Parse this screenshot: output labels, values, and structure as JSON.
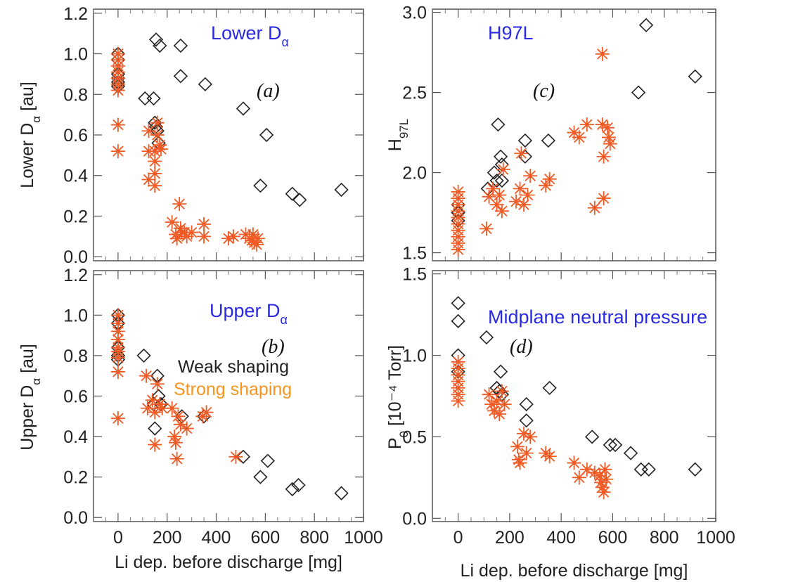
{
  "colors": {
    "weak": "#222222",
    "strong": "#f05a24",
    "annotation": "#2a2ae0",
    "legend_strong": "#f7941d"
  },
  "legend": {
    "weak": "Weak shaping",
    "strong": "Strong shaping"
  },
  "chart_data": [
    {
      "id": "a",
      "type": "scatter",
      "panel_letter": "(a)",
      "annotation": "Lower D",
      "annotation_sub": "α",
      "ylabel": "Lower D",
      "ylabel_sub": "α",
      "ylabel_suffix": " [au]",
      "xlabel": "",
      "xlim": [
        -100,
        1000
      ],
      "ylim": [
        -0.02,
        1.22
      ],
      "xticks": [
        0,
        200,
        400,
        600,
        800,
        1000
      ],
      "yticks": [
        0.0,
        0.2,
        0.4,
        0.6,
        0.8,
        1.0,
        1.2
      ],
      "ytick_labels": [
        "0.0",
        "0.2",
        "0.4",
        "0.6",
        "0.8",
        "1.0",
        "1.2"
      ],
      "show_xtick_labels": false,
      "series": [
        {
          "name": "Weak shaping",
          "marker": "diamond",
          "points": [
            [
              0,
              1.0
            ],
            [
              0,
              0.97
            ],
            [
              0,
              0.9
            ],
            [
              0,
              0.88
            ],
            [
              0,
              0.86
            ],
            [
              0,
              0.84
            ],
            [
              110,
              0.78
            ],
            [
              145,
              0.78
            ],
            [
              150,
              0.66
            ],
            [
              155,
              0.64
            ],
            [
              160,
              0.62
            ],
            [
              165,
              0.56
            ],
            [
              155,
              1.07
            ],
            [
              170,
              1.04
            ],
            [
              255,
              1.04
            ],
            [
              255,
              0.89
            ],
            [
              355,
              0.85
            ],
            [
              510,
              0.73
            ],
            [
              605,
              0.6
            ],
            [
              580,
              0.35
            ],
            [
              710,
              0.31
            ],
            [
              740,
              0.28
            ],
            [
              910,
              0.33
            ]
          ]
        },
        {
          "name": "Strong shaping",
          "marker": "asterisk",
          "points": [
            [
              0,
              1.0
            ],
            [
              0,
              0.97
            ],
            [
              0,
              0.94
            ],
            [
              0,
              0.91
            ],
            [
              0,
              0.88
            ],
            [
              0,
              0.85
            ],
            [
              0,
              0.82
            ],
            [
              0,
              0.65
            ],
            [
              0,
              0.52
            ],
            [
              125,
              0.62
            ],
            [
              125,
              0.52
            ],
            [
              125,
              0.38
            ],
            [
              150,
              0.52
            ],
            [
              150,
              0.47
            ],
            [
              150,
              0.41
            ],
            [
              150,
              0.35
            ],
            [
              160,
              0.66
            ],
            [
              160,
              0.6
            ],
            [
              170,
              0.55
            ],
            [
              175,
              0.53
            ],
            [
              220,
              0.17
            ],
            [
              235,
              0.11
            ],
            [
              240,
              0.09
            ],
            [
              250,
              0.26
            ],
            [
              255,
              0.14
            ],
            [
              260,
              0.12
            ],
            [
              270,
              0.12
            ],
            [
              280,
              0.1
            ],
            [
              300,
              0.12
            ],
            [
              350,
              0.16
            ],
            [
              350,
              0.1
            ],
            [
              450,
              0.09
            ],
            [
              470,
              0.1
            ],
            [
              520,
              0.11
            ],
            [
              535,
              0.09
            ],
            [
              545,
              0.08
            ],
            [
              550,
              0.11
            ],
            [
              555,
              0.07
            ],
            [
              565,
              0.06
            ],
            [
              570,
              0.09
            ]
          ]
        }
      ]
    },
    {
      "id": "b",
      "type": "scatter",
      "panel_letter": "(b)",
      "annotation": "Upper D",
      "annotation_sub": "α",
      "ylabel": "Upper D",
      "ylabel_sub": "α",
      "ylabel_suffix": " [au]",
      "xlabel": "Li dep. before discharge [mg]",
      "xlim": [
        -100,
        1000
      ],
      "ylim": [
        -0.02,
        1.22
      ],
      "xticks": [
        0,
        200,
        400,
        600,
        800,
        1000
      ],
      "yticks": [
        0.0,
        0.2,
        0.4,
        0.6,
        0.8,
        1.0,
        1.2
      ],
      "ytick_labels": [
        "0.0",
        "0.2",
        "0.4",
        "0.6",
        "0.8",
        "1.0",
        "1.2"
      ],
      "show_xtick_labels": true,
      "series": [
        {
          "name": "Weak shaping",
          "marker": "diamond",
          "points": [
            [
              0,
              1.0
            ],
            [
              0,
              0.96
            ],
            [
              0,
              0.84
            ],
            [
              0,
              0.8
            ],
            [
              0,
              0.78
            ],
            [
              105,
              0.8
            ],
            [
              145,
              0.56
            ],
            [
              150,
              0.44
            ],
            [
              160,
              0.7
            ],
            [
              165,
              0.6
            ],
            [
              175,
              0.56
            ],
            [
              260,
              0.5
            ],
            [
              350,
              0.5
            ],
            [
              510,
              0.3
            ],
            [
              580,
              0.2
            ],
            [
              610,
              0.28
            ],
            [
              710,
              0.14
            ],
            [
              735,
              0.16
            ],
            [
              910,
              0.12
            ]
          ]
        },
        {
          "name": "Strong shaping",
          "marker": "asterisk",
          "points": [
            [
              0,
              1.0
            ],
            [
              0,
              0.96
            ],
            [
              0,
              0.92
            ],
            [
              0,
              0.88
            ],
            [
              0,
              0.84
            ],
            [
              0,
              0.82
            ],
            [
              0,
              0.79
            ],
            [
              0,
              0.72
            ],
            [
              0,
              0.49
            ],
            [
              115,
              0.7
            ],
            [
              120,
              0.54
            ],
            [
              140,
              0.58
            ],
            [
              150,
              0.52
            ],
            [
              150,
              0.36
            ],
            [
              160,
              0.66
            ],
            [
              170,
              0.56
            ],
            [
              180,
              0.54
            ],
            [
              220,
              0.54
            ],
            [
              230,
              0.4
            ],
            [
              235,
              0.37
            ],
            [
              240,
              0.29
            ],
            [
              245,
              0.5
            ],
            [
              255,
              0.46
            ],
            [
              280,
              0.44
            ],
            [
              345,
              0.5
            ],
            [
              360,
              0.52
            ],
            [
              480,
              0.3
            ]
          ]
        }
      ]
    },
    {
      "id": "c",
      "type": "scatter",
      "panel_letter": "(c)",
      "annotation": "H97L",
      "annotation_sub": "",
      "ylabel": "H",
      "ylabel_sub": "97L",
      "ylabel_suffix": "",
      "xlabel": "",
      "xlim": [
        -100,
        1000
      ],
      "ylim": [
        1.45,
        3.02
      ],
      "xticks": [
        0,
        200,
        400,
        600,
        800,
        1000
      ],
      "yticks": [
        1.5,
        2.0,
        2.5,
        3.0
      ],
      "ytick_labels": [
        "1.5",
        "2.0",
        "2.5",
        "3.0"
      ],
      "show_xtick_labels": false,
      "series": [
        {
          "name": "Weak shaping",
          "marker": "diamond",
          "points": [
            [
              0,
              1.8
            ],
            [
              0,
              1.75
            ],
            [
              0,
              1.7
            ],
            [
              115,
              1.9
            ],
            [
              140,
              2.0
            ],
            [
              150,
              1.95
            ],
            [
              155,
              2.3
            ],
            [
              165,
              2.1
            ],
            [
              170,
              2.05
            ],
            [
              170,
              1.95
            ],
            [
              260,
              2.2
            ],
            [
              260,
              2.1
            ],
            [
              350,
              2.2
            ],
            [
              700,
              2.5
            ],
            [
              730,
              2.92
            ],
            [
              920,
              2.6
            ]
          ]
        },
        {
          "name": "Strong shaping",
          "marker": "asterisk",
          "points": [
            [
              0,
              1.88
            ],
            [
              0,
              1.84
            ],
            [
              0,
              1.8
            ],
            [
              0,
              1.76
            ],
            [
              0,
              1.72
            ],
            [
              0,
              1.68
            ],
            [
              0,
              1.64
            ],
            [
              0,
              1.6
            ],
            [
              0,
              1.56
            ],
            [
              0,
              1.52
            ],
            [
              110,
              1.65
            ],
            [
              120,
              1.85
            ],
            [
              135,
              1.9
            ],
            [
              150,
              1.8
            ],
            [
              160,
              1.86
            ],
            [
              170,
              1.76
            ],
            [
              175,
              2.02
            ],
            [
              225,
              1.82
            ],
            [
              240,
              1.9
            ],
            [
              245,
              2.12
            ],
            [
              255,
              1.8
            ],
            [
              270,
              1.86
            ],
            [
              280,
              1.98
            ],
            [
              340,
              1.92
            ],
            [
              355,
              1.96
            ],
            [
              450,
              2.25
            ],
            [
              470,
              2.22
            ],
            [
              500,
              2.3
            ],
            [
              530,
              1.78
            ],
            [
              560,
              2.74
            ],
            [
              560,
              2.3
            ],
            [
              565,
              2.1
            ],
            [
              565,
              1.84
            ],
            [
              580,
              2.28
            ],
            [
              585,
              2.22
            ],
            [
              590,
              2.18
            ]
          ]
        }
      ]
    },
    {
      "id": "d",
      "type": "scatter",
      "panel_letter": "(d)",
      "annotation": "Midplane neutral pressure",
      "annotation_sub": "",
      "ylabel": "P",
      "ylabel_sub": "0",
      "ylabel_suffix": " [10⁻⁴ Torr]",
      "xlabel": "Li dep. before discharge [mg]",
      "xlim": [
        -100,
        1000
      ],
      "ylim": [
        -0.02,
        1.52
      ],
      "xticks": [
        0,
        200,
        400,
        600,
        800,
        1000
      ],
      "yticks": [
        0.0,
        0.5,
        1.0,
        1.5
      ],
      "ytick_labels": [
        "0.0",
        "0.5",
        "1.0",
        "1.5"
      ],
      "show_xtick_labels": true,
      "series": [
        {
          "name": "Weak shaping",
          "marker": "diamond",
          "points": [
            [
              0,
              1.32
            ],
            [
              0,
              1.21
            ],
            [
              0,
              1.0
            ],
            [
              0,
              0.9
            ],
            [
              110,
              1.11
            ],
            [
              150,
              0.8
            ],
            [
              160,
              0.78
            ],
            [
              165,
              0.9
            ],
            [
              170,
              0.76
            ],
            [
              265,
              0.7
            ],
            [
              265,
              0.6
            ],
            [
              355,
              0.8
            ],
            [
              520,
              0.5
            ],
            [
              590,
              0.45
            ],
            [
              610,
              0.45
            ],
            [
              670,
              0.4
            ],
            [
              710,
              0.3
            ],
            [
              740,
              0.3
            ],
            [
              920,
              0.3
            ]
          ]
        },
        {
          "name": "Strong shaping",
          "marker": "asterisk",
          "points": [
            [
              0,
              0.96
            ],
            [
              0,
              0.92
            ],
            [
              0,
              0.88
            ],
            [
              0,
              0.84
            ],
            [
              0,
              0.8
            ],
            [
              0,
              0.76
            ],
            [
              0,
              0.72
            ],
            [
              120,
              0.76
            ],
            [
              130,
              0.7
            ],
            [
              140,
              0.66
            ],
            [
              150,
              0.72
            ],
            [
              160,
              0.64
            ],
            [
              170,
              0.78
            ],
            [
              180,
              0.7
            ],
            [
              230,
              0.44
            ],
            [
              235,
              0.36
            ],
            [
              240,
              0.34
            ],
            [
              255,
              0.52
            ],
            [
              265,
              0.4
            ],
            [
              280,
              0.5
            ],
            [
              340,
              0.4
            ],
            [
              355,
              0.38
            ],
            [
              450,
              0.34
            ],
            [
              470,
              0.25
            ],
            [
              500,
              0.3
            ],
            [
              530,
              0.28
            ],
            [
              550,
              0.26
            ],
            [
              555,
              0.22
            ],
            [
              560,
              0.19
            ],
            [
              565,
              0.16
            ],
            [
              570,
              0.3
            ],
            [
              575,
              0.24
            ]
          ]
        }
      ]
    }
  ]
}
